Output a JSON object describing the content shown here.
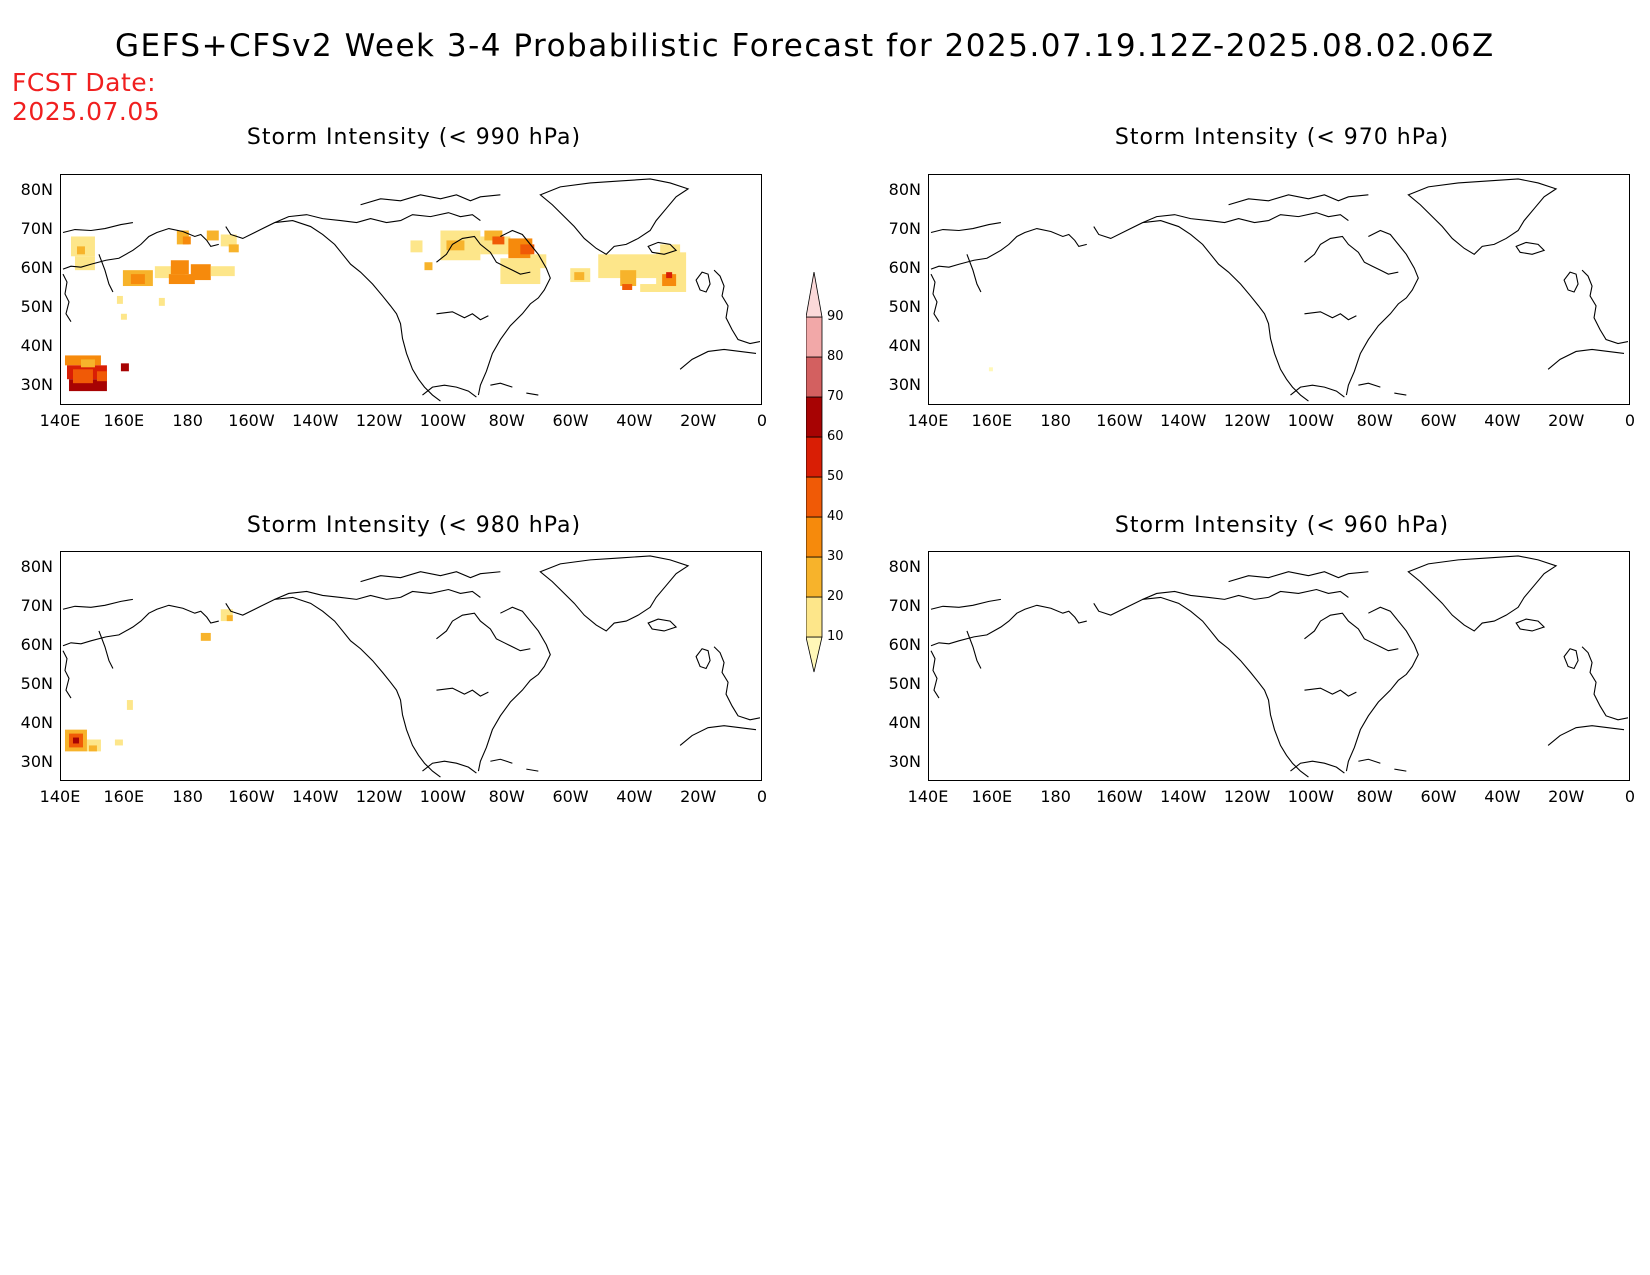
{
  "title": "GEFS+CFSv2 Week 3-4 Probabilistic Forecast for 2025.07.19.12Z-2025.08.02.06Z",
  "fcst_date_label": "FCST Date:",
  "fcst_date": "2025.07.05",
  "panels": [
    {
      "title": "Storm Intensity (< 990 hPa)",
      "activity": "high"
    },
    {
      "title": "Storm Intensity (< 970 hPa)",
      "activity": "none"
    },
    {
      "title": "Storm Intensity (< 980 hPa)",
      "activity": "low"
    },
    {
      "title": "Storm Intensity (< 960 hPa)",
      "activity": "none"
    }
  ],
  "lon_ticks": [
    "140E",
    "160E",
    "180",
    "160W",
    "140W",
    "120W",
    "100W",
    "80W",
    "60W",
    "40W",
    "20W",
    "0"
  ],
  "lat_ticks": [
    "80N",
    "70N",
    "60N",
    "50N",
    "40N",
    "30N"
  ],
  "colorbar": {
    "levels": [
      "10",
      "20",
      "30",
      "40",
      "50",
      "60",
      "70",
      "80",
      "90"
    ],
    "colors": [
      "#fff8b8",
      "#fde68a",
      "#f7b32b",
      "#f68a0c",
      "#f05a06",
      "#d91e05",
      "#a70303",
      "#d36060",
      "#f2a8a8",
      "#fbd9d9"
    ]
  }
}
